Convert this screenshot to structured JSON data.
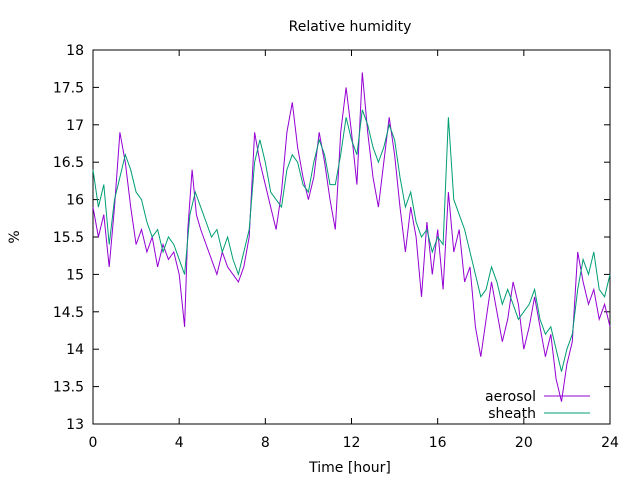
{
  "chart_data": {
    "type": "line",
    "title": "Relative humidity",
    "xlabel": "Time [hour]",
    "ylabel": "%",
    "xlim": [
      0,
      24
    ],
    "ylim": [
      13,
      18
    ],
    "xticks": [
      0,
      4,
      8,
      12,
      16,
      20,
      24
    ],
    "yticks": [
      13,
      13.5,
      14,
      14.5,
      15,
      15.5,
      16,
      16.5,
      17,
      17.5,
      18
    ],
    "grid": false,
    "legend_position": "bottom-right",
    "series": [
      {
        "name": "aerosol",
        "color": "#9400d3",
        "points": [
          [
            0,
            15.9
          ],
          [
            0.25,
            15.5
          ],
          [
            0.5,
            15.8
          ],
          [
            0.75,
            15.1
          ],
          [
            1.0,
            15.9
          ],
          [
            1.25,
            16.9
          ],
          [
            1.5,
            16.5
          ],
          [
            1.75,
            15.9
          ],
          [
            2.0,
            15.4
          ],
          [
            2.25,
            15.6
          ],
          [
            2.5,
            15.3
          ],
          [
            2.75,
            15.5
          ],
          [
            3.0,
            15.1
          ],
          [
            3.25,
            15.4
          ],
          [
            3.5,
            15.2
          ],
          [
            3.75,
            15.3
          ],
          [
            4.0,
            15.0
          ],
          [
            4.25,
            14.3
          ],
          [
            4.4,
            15.6
          ],
          [
            4.6,
            16.4
          ],
          [
            4.8,
            15.8
          ],
          [
            5.0,
            15.6
          ],
          [
            5.25,
            15.4
          ],
          [
            5.5,
            15.2
          ],
          [
            5.75,
            15.0
          ],
          [
            6.0,
            15.3
          ],
          [
            6.25,
            15.1
          ],
          [
            6.5,
            15.0
          ],
          [
            6.75,
            14.9
          ],
          [
            7.0,
            15.1
          ],
          [
            7.25,
            15.5
          ],
          [
            7.5,
            16.9
          ],
          [
            7.75,
            16.5
          ],
          [
            8.0,
            16.2
          ],
          [
            8.25,
            15.9
          ],
          [
            8.5,
            15.6
          ],
          [
            8.75,
            16.1
          ],
          [
            9.0,
            16.9
          ],
          [
            9.25,
            17.3
          ],
          [
            9.5,
            16.7
          ],
          [
            9.75,
            16.3
          ],
          [
            10.0,
            16.0
          ],
          [
            10.25,
            16.3
          ],
          [
            10.5,
            16.9
          ],
          [
            10.75,
            16.5
          ],
          [
            11.0,
            16.0
          ],
          [
            11.25,
            15.6
          ],
          [
            11.5,
            16.9
          ],
          [
            11.75,
            17.5
          ],
          [
            12.0,
            16.9
          ],
          [
            12.25,
            16.2
          ],
          [
            12.5,
            17.7
          ],
          [
            12.75,
            16.9
          ],
          [
            13.0,
            16.3
          ],
          [
            13.25,
            15.9
          ],
          [
            13.5,
            16.5
          ],
          [
            13.75,
            17.1
          ],
          [
            14.0,
            16.6
          ],
          [
            14.25,
            15.9
          ],
          [
            14.5,
            15.3
          ],
          [
            14.75,
            15.9
          ],
          [
            15.0,
            15.5
          ],
          [
            15.25,
            14.7
          ],
          [
            15.5,
            15.7
          ],
          [
            15.75,
            15.0
          ],
          [
            16.0,
            15.6
          ],
          [
            16.25,
            14.8
          ],
          [
            16.5,
            16.1
          ],
          [
            16.75,
            15.3
          ],
          [
            17.0,
            15.6
          ],
          [
            17.25,
            14.9
          ],
          [
            17.5,
            15.1
          ],
          [
            17.75,
            14.3
          ],
          [
            18.0,
            13.9
          ],
          [
            18.25,
            14.4
          ],
          [
            18.5,
            14.9
          ],
          [
            18.75,
            14.5
          ],
          [
            19.0,
            14.1
          ],
          [
            19.25,
            14.4
          ],
          [
            19.5,
            14.9
          ],
          [
            19.75,
            14.6
          ],
          [
            20.0,
            14.0
          ],
          [
            20.25,
            14.3
          ],
          [
            20.5,
            14.7
          ],
          [
            20.75,
            14.3
          ],
          [
            21.0,
            13.9
          ],
          [
            21.25,
            14.2
          ],
          [
            21.5,
            13.6
          ],
          [
            21.75,
            13.3
          ],
          [
            22.0,
            13.8
          ],
          [
            22.25,
            14.1
          ],
          [
            22.5,
            15.3
          ],
          [
            22.75,
            14.9
          ],
          [
            23.0,
            14.6
          ],
          [
            23.25,
            14.8
          ],
          [
            23.5,
            14.4
          ],
          [
            23.75,
            14.6
          ],
          [
            24.0,
            14.3
          ]
        ]
      },
      {
        "name": "sheath",
        "color": "#009e73",
        "points": [
          [
            0,
            16.4
          ],
          [
            0.25,
            15.9
          ],
          [
            0.5,
            16.2
          ],
          [
            0.75,
            15.4
          ],
          [
            1.0,
            16.0
          ],
          [
            1.25,
            16.3
          ],
          [
            1.5,
            16.6
          ],
          [
            1.75,
            16.4
          ],
          [
            2.0,
            16.1
          ],
          [
            2.25,
            16.0
          ],
          [
            2.5,
            15.7
          ],
          [
            2.75,
            15.5
          ],
          [
            3.0,
            15.6
          ],
          [
            3.25,
            15.3
          ],
          [
            3.5,
            15.5
          ],
          [
            3.75,
            15.4
          ],
          [
            4.0,
            15.2
          ],
          [
            4.25,
            15.0
          ],
          [
            4.5,
            15.8
          ],
          [
            4.75,
            16.1
          ],
          [
            5.0,
            15.9
          ],
          [
            5.25,
            15.7
          ],
          [
            5.5,
            15.5
          ],
          [
            5.75,
            15.6
          ],
          [
            6.0,
            15.3
          ],
          [
            6.25,
            15.5
          ],
          [
            6.5,
            15.2
          ],
          [
            6.75,
            15.0
          ],
          [
            7.0,
            15.3
          ],
          [
            7.25,
            15.6
          ],
          [
            7.5,
            16.5
          ],
          [
            7.75,
            16.8
          ],
          [
            8.0,
            16.5
          ],
          [
            8.25,
            16.1
          ],
          [
            8.5,
            16.0
          ],
          [
            8.75,
            15.9
          ],
          [
            9.0,
            16.4
          ],
          [
            9.25,
            16.6
          ],
          [
            9.5,
            16.5
          ],
          [
            9.75,
            16.2
          ],
          [
            10.0,
            16.1
          ],
          [
            10.25,
            16.5
          ],
          [
            10.5,
            16.8
          ],
          [
            10.75,
            16.6
          ],
          [
            11.0,
            16.2
          ],
          [
            11.25,
            16.2
          ],
          [
            11.5,
            16.6
          ],
          [
            11.75,
            17.1
          ],
          [
            12.0,
            16.8
          ],
          [
            12.25,
            16.6
          ],
          [
            12.5,
            17.2
          ],
          [
            12.75,
            17.0
          ],
          [
            13.0,
            16.7
          ],
          [
            13.25,
            16.5
          ],
          [
            13.5,
            16.7
          ],
          [
            13.75,
            17.0
          ],
          [
            14.0,
            16.8
          ],
          [
            14.25,
            16.3
          ],
          [
            14.5,
            15.9
          ],
          [
            14.75,
            16.1
          ],
          [
            15.0,
            15.7
          ],
          [
            15.25,
            15.5
          ],
          [
            15.5,
            15.6
          ],
          [
            15.75,
            15.3
          ],
          [
            16.0,
            15.5
          ],
          [
            16.25,
            15.4
          ],
          [
            16.5,
            17.1
          ],
          [
            16.75,
            16.0
          ],
          [
            17.0,
            15.8
          ],
          [
            17.25,
            15.6
          ],
          [
            17.5,
            15.3
          ],
          [
            17.75,
            15.0
          ],
          [
            18.0,
            14.7
          ],
          [
            18.25,
            14.8
          ],
          [
            18.5,
            15.1
          ],
          [
            18.75,
            14.9
          ],
          [
            19.0,
            14.6
          ],
          [
            19.25,
            14.8
          ],
          [
            19.5,
            14.6
          ],
          [
            19.75,
            14.4
          ],
          [
            20.0,
            14.5
          ],
          [
            20.25,
            14.6
          ],
          [
            20.5,
            14.8
          ],
          [
            20.75,
            14.4
          ],
          [
            21.0,
            14.2
          ],
          [
            21.25,
            14.3
          ],
          [
            21.5,
            14.0
          ],
          [
            21.75,
            13.7
          ],
          [
            22.0,
            14.0
          ],
          [
            22.25,
            14.2
          ],
          [
            22.5,
            14.8
          ],
          [
            22.75,
            15.2
          ],
          [
            23.0,
            15.0
          ],
          [
            23.25,
            15.3
          ],
          [
            23.5,
            14.8
          ],
          [
            23.75,
            14.7
          ],
          [
            24.0,
            15.0
          ]
        ]
      }
    ]
  }
}
